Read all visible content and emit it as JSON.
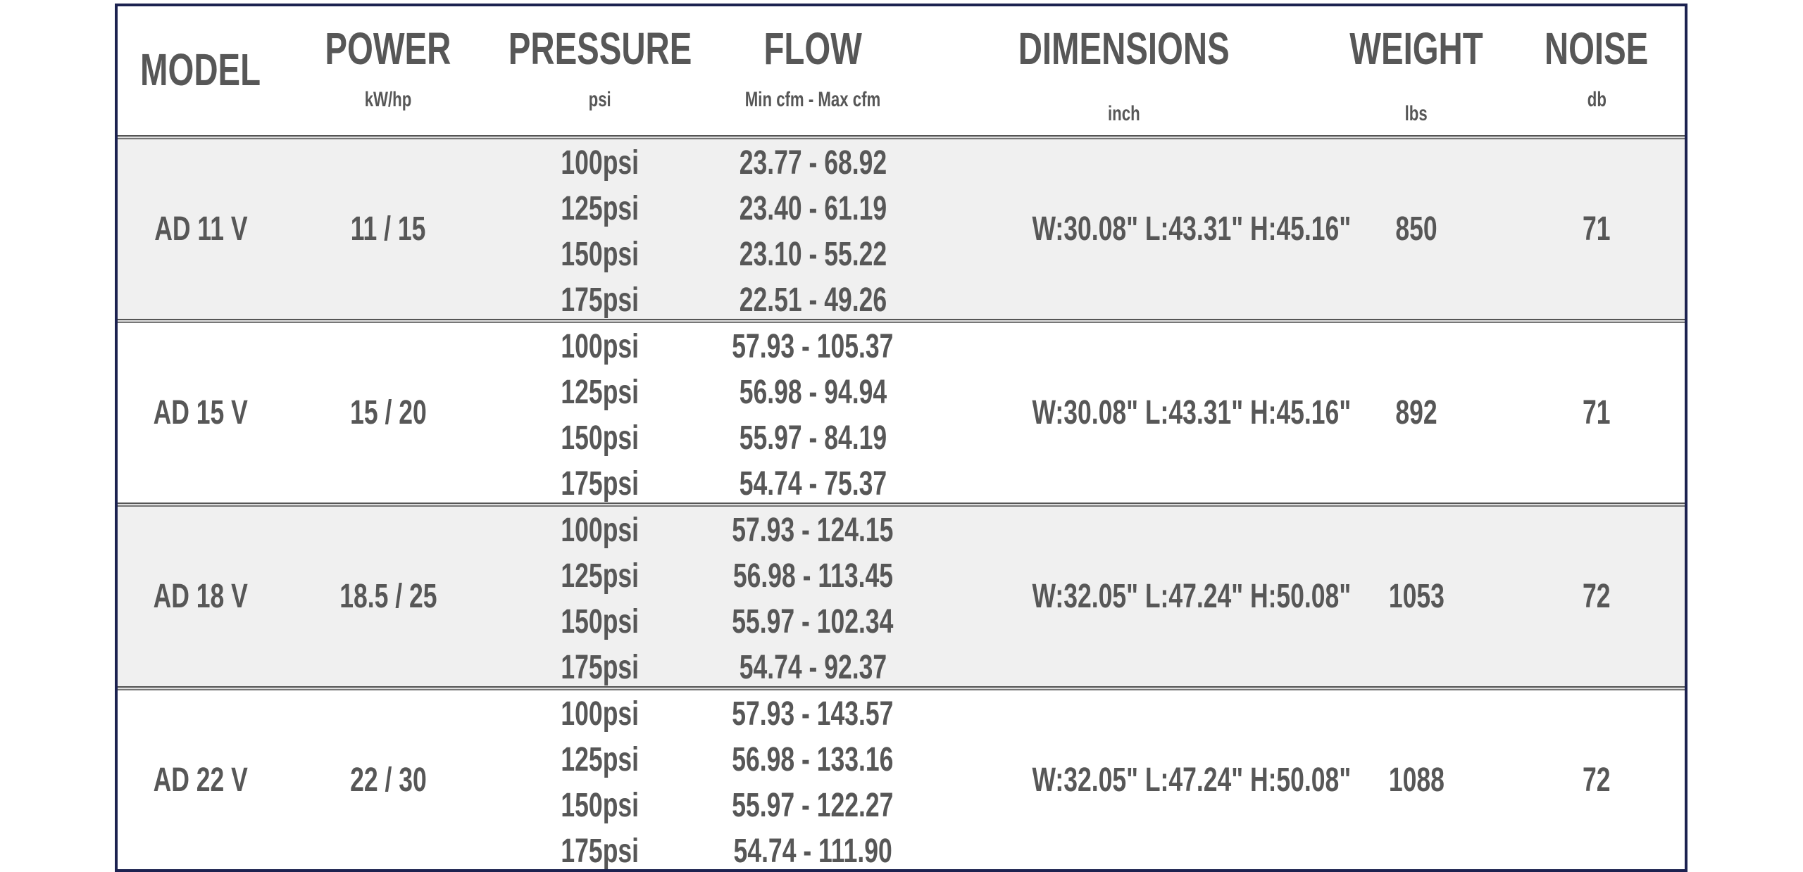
{
  "header": {
    "columns": [
      {
        "title": "MODEL",
        "unit": ""
      },
      {
        "title": "POWER",
        "unit": "kW/hp"
      },
      {
        "title": "PRESSURE",
        "unit": "psi"
      },
      {
        "title": "FLOW",
        "unit": "Min cfm - Max cfm"
      },
      {
        "title": "DIMENSIONS",
        "unit": "inch"
      },
      {
        "title": "WEIGHT",
        "unit": "lbs"
      },
      {
        "title": "NOISE",
        "unit": "db"
      }
    ]
  },
  "rows": [
    {
      "model": "AD 11 V",
      "power": "11 / 15",
      "pressures": [
        "100psi",
        "125psi",
        "150psi",
        "175psi"
      ],
      "flows": [
        "23.77 - 68.92",
        "23.40 - 61.19",
        "23.10 - 55.22",
        "22.51 - 49.26"
      ],
      "dimensions": "W:30.08\"  L:43.31\"   H:45.16\"",
      "weight": "850",
      "noise": "71"
    },
    {
      "model": "AD 15 V",
      "power": "15 / 20",
      "pressures": [
        "100psi",
        "125psi",
        "150psi",
        "175psi"
      ],
      "flows": [
        "57.93 - 105.37",
        "56.98 - 94.94",
        "55.97 - 84.19",
        "54.74 - 75.37"
      ],
      "dimensions": "W:30.08\"  L:43.31\"   H:45.16\"",
      "weight": "892",
      "noise": "71"
    },
    {
      "model": "AD 18 V",
      "power": "18.5 / 25",
      "pressures": [
        "100psi",
        "125psi",
        "150psi",
        "175psi"
      ],
      "flows": [
        "57.93 - 124.15",
        "56.98 - 113.45",
        "55.97 - 102.34",
        "54.74 - 92.37"
      ],
      "dimensions": "W:32.05\"  L:47.24\"   H:50.08\"",
      "weight": "1053",
      "noise": "72"
    },
    {
      "model": "AD 22 V",
      "power": "22 / 30",
      "pressures": [
        "100psi",
        "125psi",
        "150psi",
        "175psi"
      ],
      "flows": [
        "57.93 - 143.57",
        "56.98 - 133.16",
        "55.97 - 122.27",
        "54.74 - 111.90"
      ],
      "dimensions": "W:32.05\"  L:47.24\"   H:50.08\"",
      "weight": "1088",
      "noise": "72"
    }
  ],
  "colors": {
    "border": "#1c2250",
    "text": "#575757",
    "shade": "#f0f0f0"
  }
}
